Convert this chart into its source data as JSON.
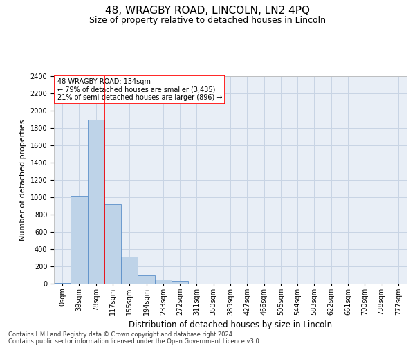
{
  "title": "48, WRAGBY ROAD, LINCOLN, LN2 4PQ",
  "subtitle": "Size of property relative to detached houses in Lincoln",
  "xlabel": "Distribution of detached houses by size in Lincoln",
  "ylabel": "Number of detached properties",
  "categories": [
    "0sqm",
    "39sqm",
    "78sqm",
    "117sqm",
    "155sqm",
    "194sqm",
    "233sqm",
    "272sqm",
    "311sqm",
    "350sqm",
    "389sqm",
    "427sqm",
    "466sqm",
    "505sqm",
    "544sqm",
    "583sqm",
    "622sqm",
    "661sqm",
    "700sqm",
    "738sqm",
    "777sqm"
  ],
  "values": [
    10,
    1020,
    1900,
    920,
    310,
    100,
    50,
    30,
    0,
    0,
    0,
    0,
    0,
    0,
    0,
    0,
    0,
    0,
    0,
    0,
    0
  ],
  "bar_color": "#bed3e8",
  "bar_edge_color": "#5b8fc9",
  "red_line_index": 3,
  "annotation_title": "48 WRAGBY ROAD: 134sqm",
  "annotation_line1": "← 79% of detached houses are smaller (3,435)",
  "annotation_line2": "21% of semi-detached houses are larger (896) →",
  "ylim": [
    0,
    2400
  ],
  "yticks": [
    0,
    200,
    400,
    600,
    800,
    1000,
    1200,
    1400,
    1600,
    1800,
    2000,
    2200,
    2400
  ],
  "grid_color": "#c8d4e4",
  "bg_color": "#e8eef6",
  "title_fontsize": 11,
  "subtitle_fontsize": 9,
  "axis_label_fontsize": 8,
  "tick_fontsize": 7,
  "footnote1": "Contains HM Land Registry data © Crown copyright and database right 2024.",
  "footnote2": "Contains public sector information licensed under the Open Government Licence v3.0."
}
